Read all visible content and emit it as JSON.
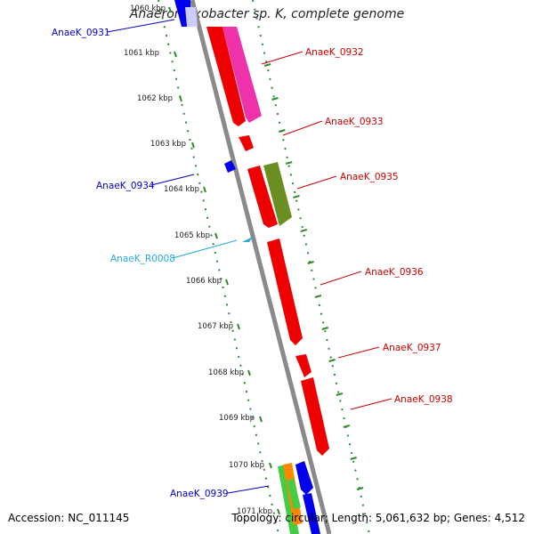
{
  "title": "Anaeromyxobacter sp. K, complete genome",
  "footer": {
    "accession": "Accession: NC_011145",
    "summary": "Topology: circular; Length: 5,061,632 bp; Genes: 4,512"
  },
  "colors": {
    "backbone": "#8a8a8a",
    "ruler": "#2e8b2e",
    "forward_label": "#cc0000",
    "reverse_label": "#0000cc",
    "rna_label": "#22aadd"
  },
  "ticks": [
    "1060 kbp",
    "1061 kbp",
    "1062 kbp",
    "1063 kbp",
    "1064 kbp",
    "1065 kbp",
    "1066 kbp",
    "1067 kbp",
    "1068 kbp",
    "1069 kbp",
    "1070 kbp",
    "1071 kbp"
  ],
  "labels": [
    {
      "text": "AnaeK_0931",
      "kind": "reverse"
    },
    {
      "text": "AnaeK_0932",
      "kind": "forward"
    },
    {
      "text": "AnaeK_0933",
      "kind": "forward"
    },
    {
      "text": "AnaeK_0934",
      "kind": "reverse"
    },
    {
      "text": "AnaeK_0935",
      "kind": "forward"
    },
    {
      "text": "AnaeK_R0008",
      "kind": "rna"
    },
    {
      "text": "AnaeK_0936",
      "kind": "forward"
    },
    {
      "text": "AnaeK_0937",
      "kind": "forward"
    },
    {
      "text": "AnaeK_0938",
      "kind": "forward"
    },
    {
      "text": "AnaeK_0939",
      "kind": "reverse"
    }
  ],
  "features": [
    {
      "name": "blue-gene",
      "color": "#0000ee"
    },
    {
      "name": "lavender-gene",
      "color": "#ccccff"
    },
    {
      "name": "pink-gene",
      "color": "#ee33aa"
    },
    {
      "name": "red-gene",
      "color": "#ee0000"
    },
    {
      "name": "olive-gene",
      "color": "#6b8e23"
    },
    {
      "name": "cyan-rna",
      "color": "#22aadd"
    },
    {
      "name": "green-gene",
      "color": "#44cc44"
    },
    {
      "name": "orange-gene",
      "color": "#ff8800"
    }
  ]
}
